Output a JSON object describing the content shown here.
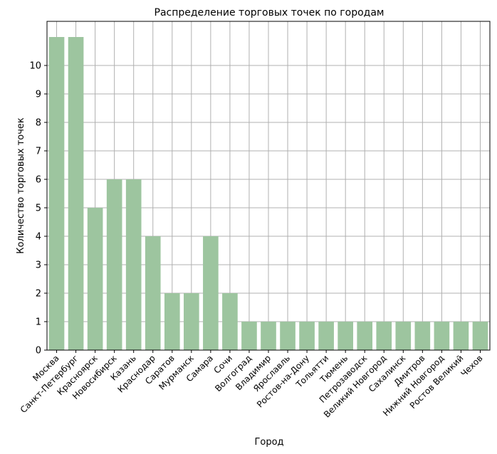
{
  "chart_data": {
    "type": "bar",
    "title": "Распределение торговых точек по городам",
    "xlabel": "Город",
    "ylabel": "Количество торговых точек",
    "ylim": [
      0,
      11.55
    ],
    "yticks": [
      0,
      1,
      2,
      3,
      4,
      5,
      6,
      7,
      8,
      9,
      10
    ],
    "grid": true,
    "bar_color": "#9dc59f",
    "categories": [
      "Москва",
      "Санкт-Петербург",
      "Красноярск",
      "Новосибирск",
      "Казань",
      "Краснодар",
      "Саратов",
      "Мурманск",
      "Самара",
      "Сочи",
      "Волгоград",
      "Владимир",
      "Ярославль",
      "Ростов-на-Дону",
      "Тольятти",
      "Тюмень",
      "Петрозаводск",
      "Великий Новгород",
      "Сахалинск",
      "Дмитров",
      "Нижний Новгород",
      "Ростов Великий",
      "Чехов"
    ],
    "values": [
      11,
      11,
      5,
      6,
      6,
      4,
      2,
      2,
      4,
      2,
      1,
      1,
      1,
      1,
      1,
      1,
      1,
      1,
      1,
      1,
      1,
      1,
      1
    ]
  }
}
